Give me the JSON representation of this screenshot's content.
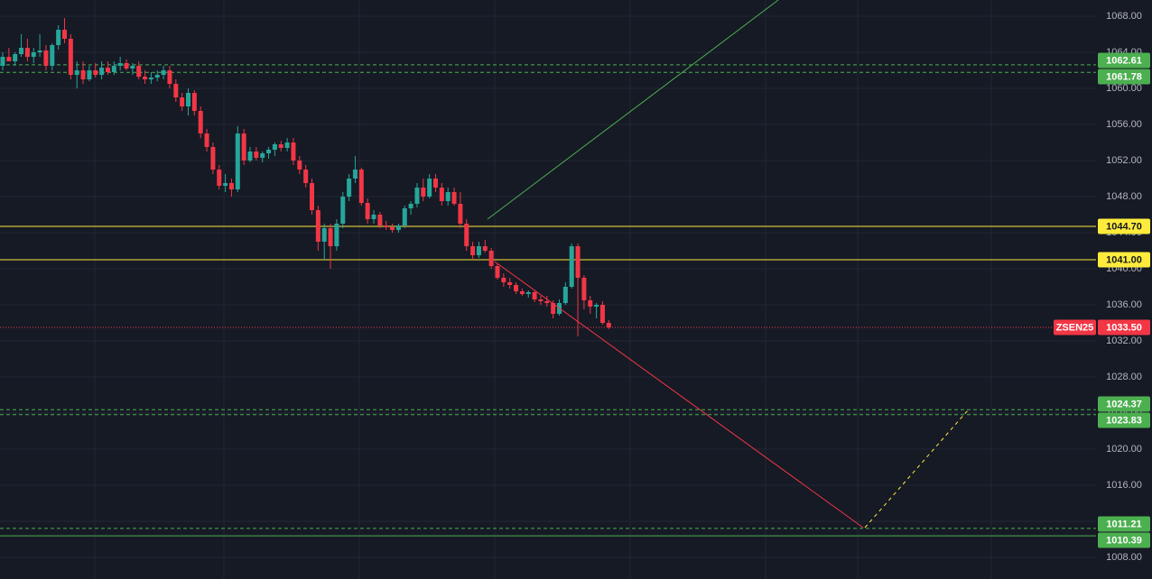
{
  "chart_data": {
    "type": "candlestick",
    "symbol": "ZSEN25",
    "last_price": {
      "value": 1033.5,
      "label": "1033.50"
    },
    "up_color": "#26a69a",
    "down_color": "#f23645",
    "ylim": [
      1005.6,
      1069.8
    ],
    "yticks": [
      {
        "value": 1068,
        "label": "1068.00"
      },
      {
        "value": 1064,
        "label": "1064.00"
      },
      {
        "value": 1060,
        "label": "1060.00"
      },
      {
        "value": 1056,
        "label": "1056.00"
      },
      {
        "value": 1052,
        "label": "1052.00"
      },
      {
        "value": 1048,
        "label": "1048.00"
      },
      {
        "value": 1044,
        "label": "1044.00"
      },
      {
        "value": 1040,
        "label": "1040.00"
      },
      {
        "value": 1036,
        "label": "1036.00"
      },
      {
        "value": 1032,
        "label": "1032.00"
      },
      {
        "value": 1028,
        "label": "1028.00"
      },
      {
        "value": 1024,
        "label": "1024.00"
      },
      {
        "value": 1020,
        "label": "1020.00"
      },
      {
        "value": 1016,
        "label": "1016.00"
      },
      {
        "value": 1012,
        "label": "1012.00"
      },
      {
        "value": 1008,
        "label": "1008.00"
      }
    ],
    "levels": [
      {
        "value": 1062.61,
        "label": "1062.61",
        "color": "#4caf50",
        "style": "dashed"
      },
      {
        "value": 1061.78,
        "label": "1061.78",
        "color": "#4caf50",
        "style": "dashed"
      },
      {
        "value": 1044.7,
        "label": "1044.70",
        "color": "#ffeb3b",
        "style": "solid"
      },
      {
        "value": 1041,
        "label": "1041.00",
        "color": "#ffeb3b",
        "style": "solid"
      },
      {
        "value": 1024.37,
        "label": "1024.37",
        "color": "#4caf50",
        "style": "dashed"
      },
      {
        "value": 1023.83,
        "label": "1023.83",
        "color": "#4caf50",
        "style": "dashed"
      },
      {
        "value": 1011.21,
        "label": "1011.21",
        "color": "#4caf50",
        "style": "dashed"
      },
      {
        "value": 1010.39,
        "label": "1010.39",
        "color": "#4caf50",
        "style": "solid"
      }
    ],
    "ohlc": [
      [
        1062.5,
        1064,
        1062,
        1063.5
      ],
      [
        1063.5,
        1064.5,
        1063,
        1063
      ],
      [
        1063,
        1064,
        1062.5,
        1063.8
      ],
      [
        1063.8,
        1066,
        1063.5,
        1064.5
      ],
      [
        1064.5,
        1065.5,
        1063,
        1063.5
      ],
      [
        1063.5,
        1064.5,
        1062.8,
        1064
      ],
      [
        1064,
        1066,
        1063.5,
        1064.2
      ],
      [
        1064.2,
        1064.8,
        1062,
        1062.5
      ],
      [
        1062.5,
        1065,
        1062,
        1064.8
      ],
      [
        1064.8,
        1067,
        1064.3,
        1066.5
      ],
      [
        1066.5,
        1067.8,
        1065,
        1065.5
      ],
      [
        1065.5,
        1066,
        1061,
        1061.5
      ],
      [
        1061.5,
        1063,
        1060,
        1062
      ],
      [
        1062,
        1063,
        1060.5,
        1061
      ],
      [
        1061,
        1062.5,
        1060.8,
        1062
      ],
      [
        1062,
        1062.8,
        1061.2,
        1061.5
      ],
      [
        1061.5,
        1063,
        1061,
        1062.3
      ],
      [
        1062.3,
        1063,
        1061.5,
        1061.8
      ],
      [
        1061.8,
        1063,
        1061.5,
        1062.5
      ],
      [
        1062.5,
        1063.5,
        1062,
        1062.8
      ],
      [
        1062.8,
        1063.2,
        1062,
        1062.2
      ],
      [
        1062.2,
        1062.8,
        1061.5,
        1062.5
      ],
      [
        1062.5,
        1063,
        1061,
        1061.3
      ],
      [
        1061.3,
        1062,
        1060.5,
        1061
      ],
      [
        1061,
        1061.8,
        1060.5,
        1061.2
      ],
      [
        1061.2,
        1062,
        1060.8,
        1061.5
      ],
      [
        1061.5,
        1062.5,
        1061,
        1062
      ],
      [
        1062,
        1062.5,
        1060,
        1060.5
      ],
      [
        1060.5,
        1061,
        1058.5,
        1059
      ],
      [
        1059,
        1059.5,
        1057.5,
        1058
      ],
      [
        1058,
        1060,
        1057,
        1059.5
      ],
      [
        1059.5,
        1059.8,
        1057,
        1057.5
      ],
      [
        1057.5,
        1058,
        1054.5,
        1055
      ],
      [
        1055,
        1055.5,
        1053,
        1053.5
      ],
      [
        1053.5,
        1054,
        1050.5,
        1051
      ],
      [
        1051,
        1051.5,
        1048.8,
        1049.2
      ],
      [
        1049.2,
        1050.5,
        1048.5,
        1049.5
      ],
      [
        1049.5,
        1050,
        1048,
        1048.8
      ],
      [
        1048.8,
        1055.8,
        1048.5,
        1055
      ],
      [
        1055,
        1055.5,
        1051.5,
        1052
      ],
      [
        1052,
        1053.5,
        1051.8,
        1053
      ],
      [
        1053,
        1053.5,
        1052,
        1052.3
      ],
      [
        1052.3,
        1053,
        1051.8,
        1052.8
      ],
      [
        1052.8,
        1053.5,
        1052.2,
        1053.2
      ],
      [
        1053.2,
        1054,
        1052.5,
        1053.8
      ],
      [
        1053.8,
        1054.2,
        1053,
        1053.4
      ],
      [
        1053.4,
        1054.5,
        1053,
        1054
      ],
      [
        1054,
        1054.5,
        1051.5,
        1052
      ],
      [
        1052,
        1052.5,
        1050.5,
        1051
      ],
      [
        1051,
        1051.5,
        1049,
        1049.5
      ],
      [
        1049.5,
        1050,
        1046,
        1046.5
      ],
      [
        1046.5,
        1047,
        1042,
        1043
      ],
      [
        1043,
        1045,
        1041,
        1044.5
      ],
      [
        1044.5,
        1045,
        1040,
        1042.5
      ],
      [
        1042.5,
        1045.5,
        1042,
        1045
      ],
      [
        1045,
        1048.5,
        1044.5,
        1048
      ],
      [
        1048,
        1050.5,
        1047.5,
        1050
      ],
      [
        1050,
        1052.5,
        1049.5,
        1051
      ],
      [
        1051,
        1051.2,
        1047,
        1047.3
      ],
      [
        1047.3,
        1047.8,
        1045,
        1045.5
      ],
      [
        1045.5,
        1046.5,
        1045,
        1046
      ],
      [
        1046,
        1046.3,
        1044.5,
        1044.8
      ],
      [
        1044.8,
        1045.3,
        1044.3,
        1044.6
      ],
      [
        1044.6,
        1045,
        1044,
        1044.3
      ],
      [
        1044.3,
        1045,
        1044,
        1044.8
      ],
      [
        1044.8,
        1047,
        1044.5,
        1046.7
      ],
      [
        1046.7,
        1047.5,
        1046,
        1047.2
      ],
      [
        1047.2,
        1049.5,
        1046.8,
        1049
      ],
      [
        1049,
        1050,
        1047.5,
        1048
      ],
      [
        1048,
        1050.5,
        1047.8,
        1050
      ],
      [
        1050,
        1050.5,
        1048.5,
        1049
      ],
      [
        1049,
        1049.5,
        1047,
        1047.5
      ],
      [
        1047.5,
        1049,
        1047,
        1048.5
      ],
      [
        1048.5,
        1049,
        1047,
        1047.2
      ],
      [
        1047.2,
        1048.5,
        1044.5,
        1045
      ],
      [
        1045,
        1045.5,
        1042,
        1042.5
      ],
      [
        1042.5,
        1043,
        1041,
        1041.5
      ],
      [
        1041.5,
        1043,
        1041.2,
        1042.5
      ],
      [
        1042.5,
        1043.2,
        1041.8,
        1042
      ],
      [
        1042,
        1042.3,
        1040,
        1040.3
      ],
      [
        1040.3,
        1040.6,
        1038.8,
        1039
      ],
      [
        1039,
        1039.5,
        1038,
        1038.5
      ],
      [
        1038.5,
        1039,
        1037.8,
        1038.2
      ],
      [
        1038.2,
        1038.5,
        1037.2,
        1037.5
      ],
      [
        1037.5,
        1037.8,
        1037,
        1037.2
      ],
      [
        1037.2,
        1037.6,
        1036.8,
        1037.4
      ],
      [
        1037.4,
        1037.6,
        1036.3,
        1036.6
      ],
      [
        1036.6,
        1037,
        1036,
        1036.4
      ],
      [
        1036.4,
        1037,
        1035.8,
        1036.2
      ],
      [
        1036.2,
        1036.5,
        1034.5,
        1035
      ],
      [
        1035,
        1036.6,
        1034.8,
        1036.2
      ],
      [
        1036.2,
        1038.5,
        1036,
        1038
      ],
      [
        1038,
        1042.8,
        1037.8,
        1042.5
      ],
      [
        1042.5,
        1042.8,
        1032.5,
        1039
      ],
      [
        1039,
        1039.3,
        1035.5,
        1036.5
      ],
      [
        1036.5,
        1037,
        1035,
        1035.8
      ],
      [
        1035.8,
        1036.2,
        1034.5,
        1036
      ],
      [
        1036,
        1036.4,
        1033.8,
        1034
      ],
      [
        1034,
        1034.3,
        1033.3,
        1033.5
      ]
    ]
  }
}
